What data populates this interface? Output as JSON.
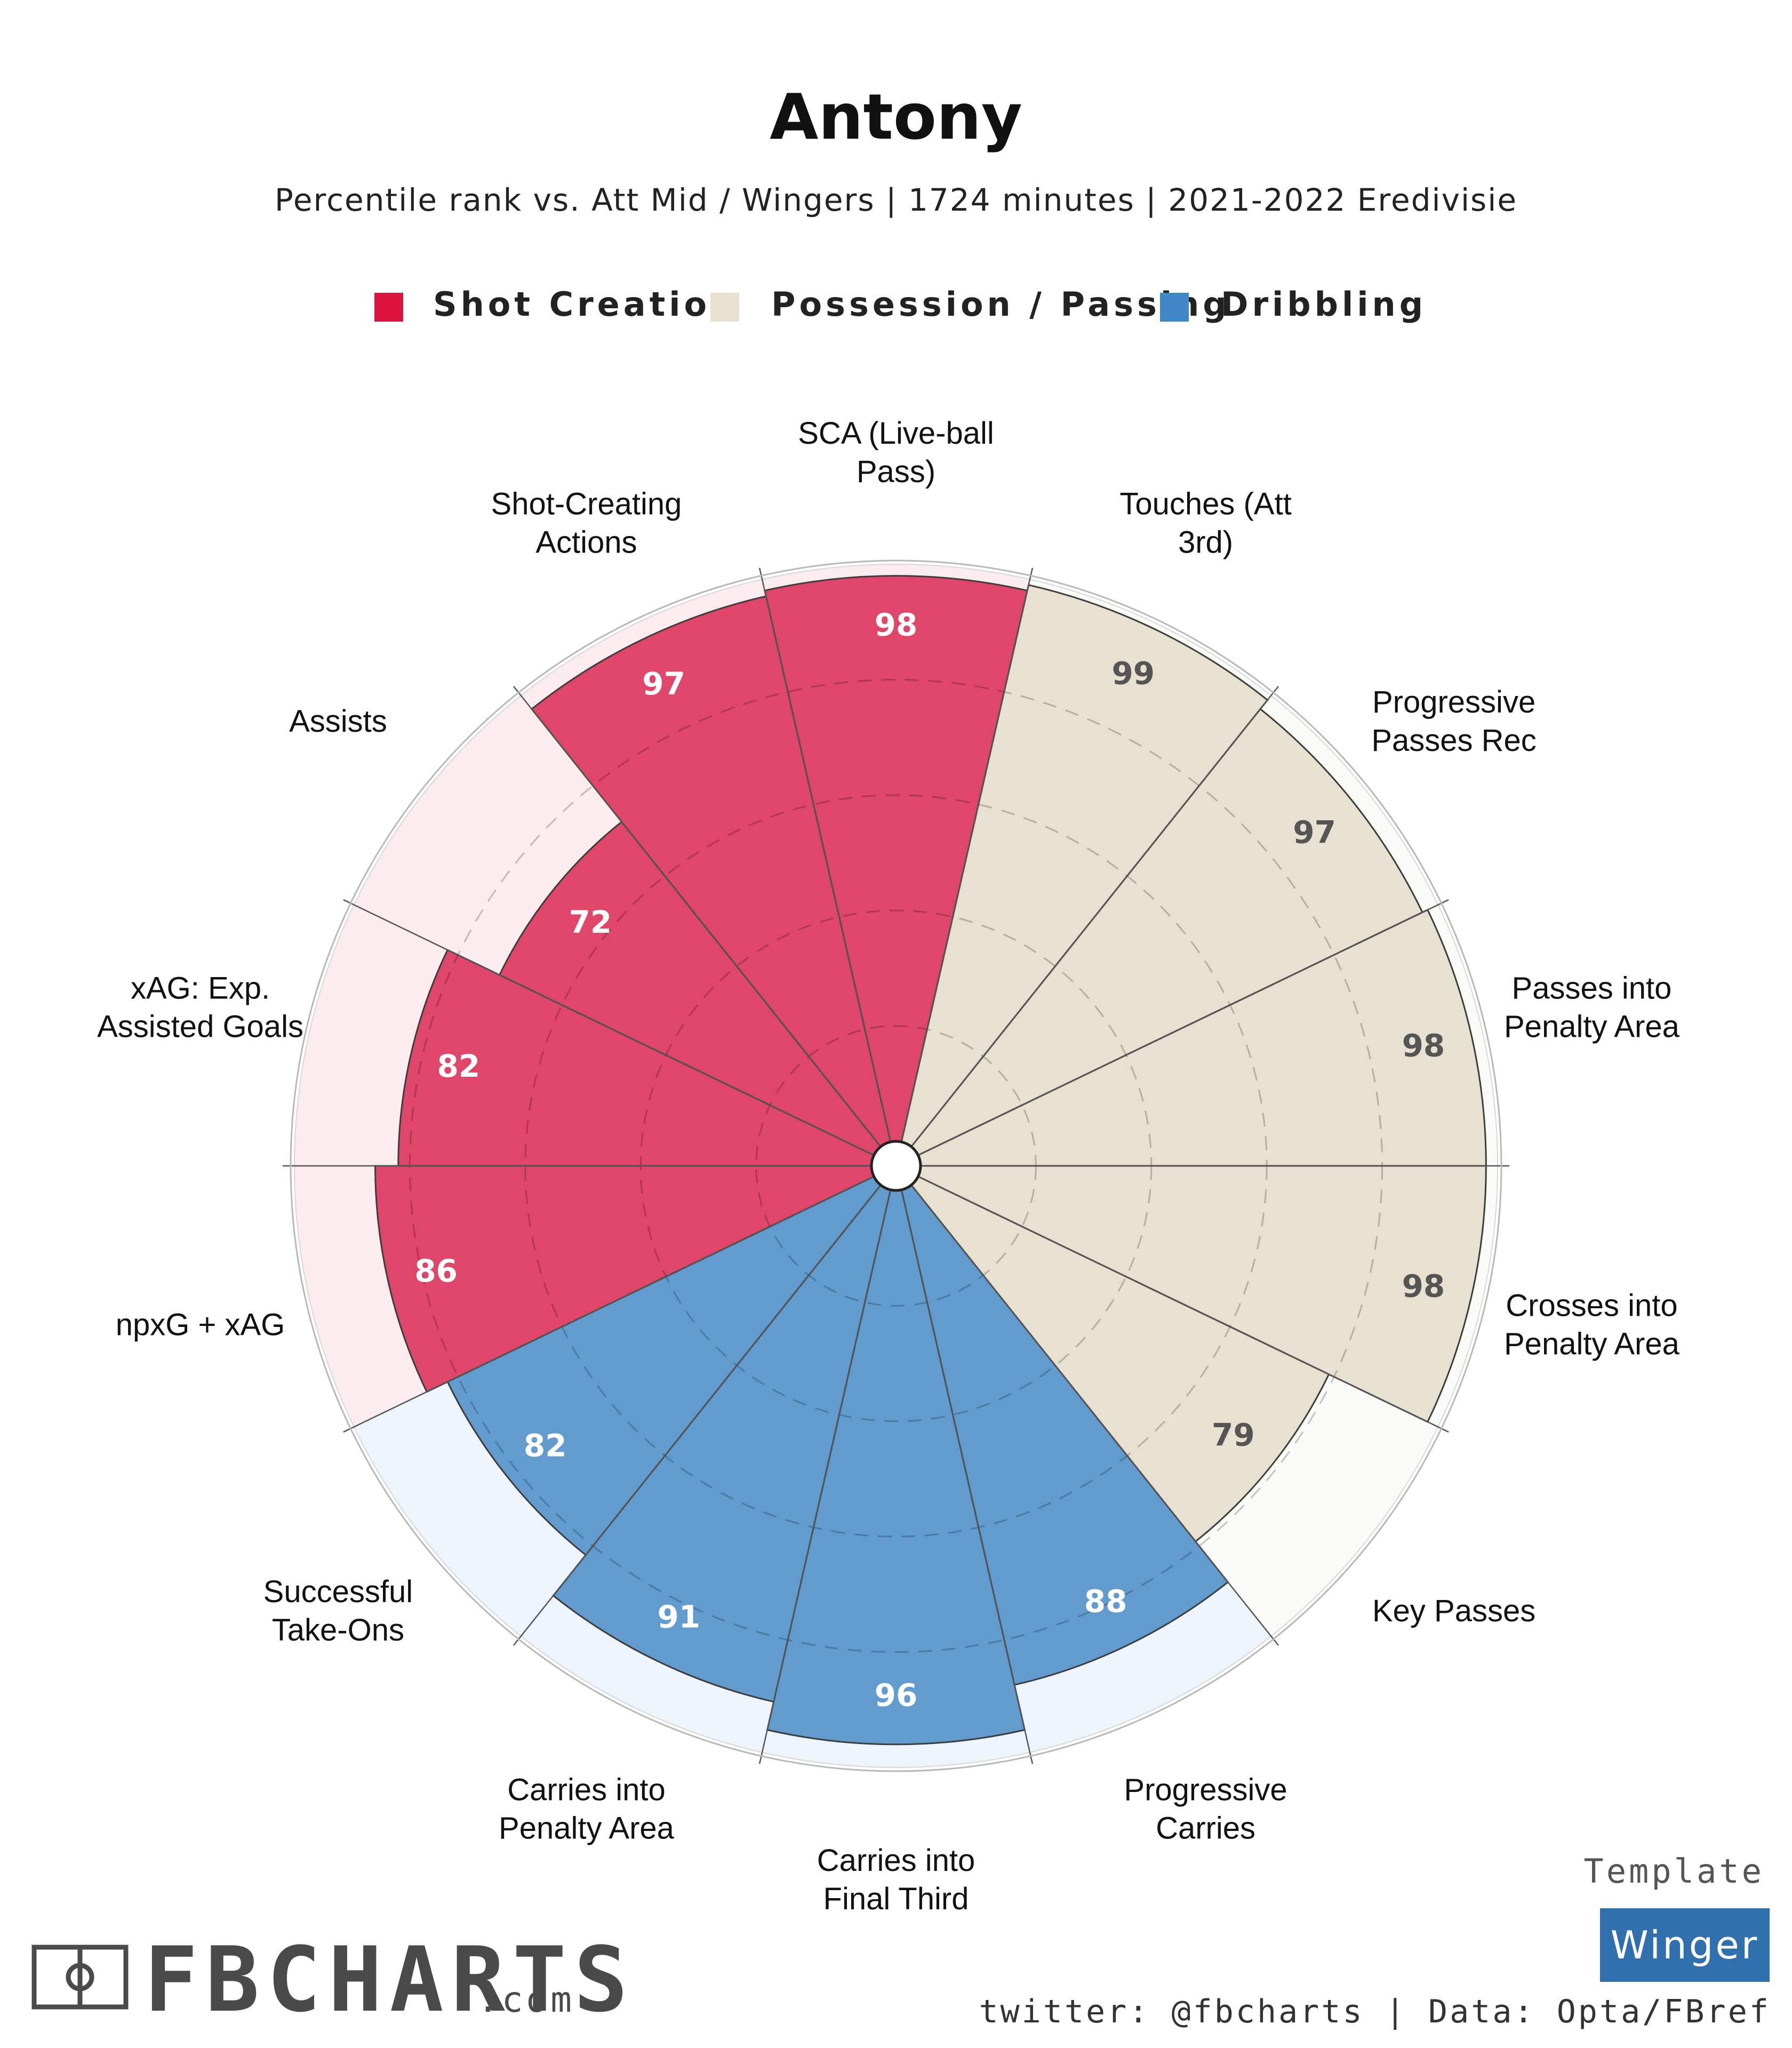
{
  "title": "Antony",
  "subtitle": "Percentile rank vs. Att Mid / Wingers | 1724 minutes | 2021-2022 Eredivisie",
  "legend": [
    {
      "label": "Shot Creation",
      "color": "#dc143c"
    },
    {
      "label": "Possession / Passing",
      "color": "#e8e0d0"
    },
    {
      "label": "Dribbling",
      "color": "#3f87c7"
    }
  ],
  "chart_data": {
    "type": "polar-bar",
    "range": [
      0,
      100
    ],
    "slices": [
      {
        "label": "SCA (Live-ball Pass)",
        "label_lines": [
          "SCA (Live-ball",
          "Pass)"
        ],
        "value": 98,
        "group": "Shot Creation"
      },
      {
        "label": "Touches (Att 3rd)",
        "label_lines": [
          "Touches (Att",
          "3rd)"
        ],
        "value": 99,
        "group": "Possession / Passing"
      },
      {
        "label": "Progressive Passes Rec",
        "label_lines": [
          "Progressive",
          "Passes Rec"
        ],
        "value": 97,
        "group": "Possession / Passing"
      },
      {
        "label": "Passes into Penalty Area",
        "label_lines": [
          "Passes into",
          "Penalty Area"
        ],
        "value": 98,
        "group": "Possession / Passing"
      },
      {
        "label": "Crosses into Penalty Area",
        "label_lines": [
          "Crosses into",
          "Penalty Area"
        ],
        "value": 98,
        "group": "Possession / Passing"
      },
      {
        "label": "Key Passes",
        "label_lines": [
          "Key Passes"
        ],
        "value": 79,
        "group": "Possession / Passing"
      },
      {
        "label": "Progressive Carries",
        "label_lines": [
          "Progressive",
          "Carries"
        ],
        "value": 88,
        "group": "Dribbling"
      },
      {
        "label": "Carries into Final Third",
        "label_lines": [
          "Carries into",
          "Final Third"
        ],
        "value": 96,
        "group": "Dribbling"
      },
      {
        "label": "Carries into Penalty Area",
        "label_lines": [
          "Carries into",
          "Penalty Area"
        ],
        "value": 91,
        "group": "Dribbling"
      },
      {
        "label": "Successful Take-Ons",
        "label_lines": [
          "Successful",
          "Take-Ons"
        ],
        "value": 82,
        "group": "Dribbling"
      },
      {
        "label": "npxG + xAG",
        "label_lines": [
          "npxG + xAG"
        ],
        "value": 86,
        "group": "Shot Creation"
      },
      {
        "label": "xAG: Exp. Assisted Goals",
        "label_lines": [
          "xAG: Exp.",
          "Assisted Goals"
        ],
        "value": 82,
        "group": "Shot Creation"
      },
      {
        "label": "Assists",
        "label_lines": [
          "Assists"
        ],
        "value": 72,
        "group": "Shot Creation"
      },
      {
        "label": "Shot-Creating Actions",
        "label_lines": [
          "Shot-Creating",
          "Actions"
        ],
        "value": 97,
        "group": "Shot Creation"
      }
    ],
    "group_colors": {
      "Shot Creation": {
        "fill": "#e0466a",
        "background": "#fbecef",
        "text": "#ffffff"
      },
      "Possession / Passing": {
        "fill": "#e8e0d0",
        "background": "#fafaf7",
        "text": "#555555"
      },
      "Dribbling": {
        "fill": "#629ccf",
        "background": "#eef4fb",
        "text": "#ffffff"
      }
    }
  },
  "branding": {
    "name": "FBCHARTS",
    "domain": ".com",
    "template_label": "Template",
    "template_name": "Winger",
    "template_color": "#2f6fae",
    "credit": "twitter: @fbcharts | Data: Opta/FBref"
  }
}
